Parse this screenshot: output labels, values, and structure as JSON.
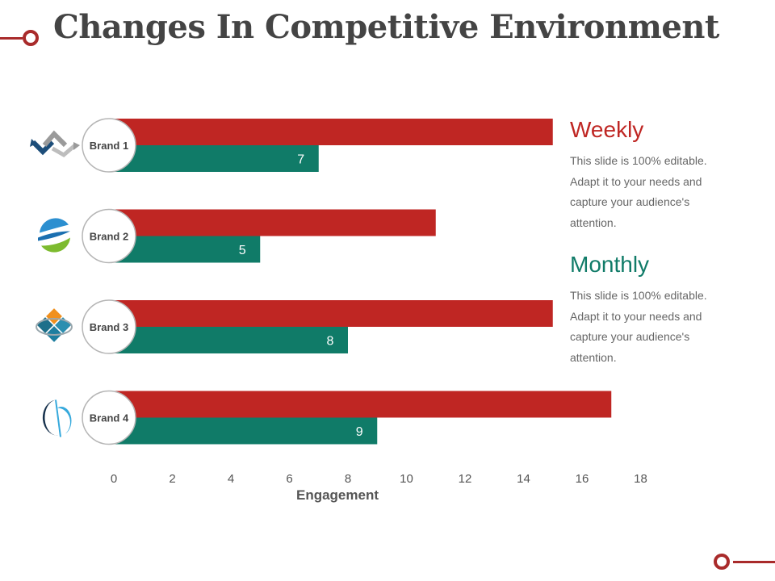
{
  "title": "Changes In Competitive Environment",
  "colors": {
    "weekly": "#bf2623",
    "monthly": "#107b68",
    "accent": "#a92b2b",
    "axis_text": "#555555",
    "title_text": "#444444"
  },
  "legend": [
    {
      "title": "Weekly",
      "lines": [
        "This slide is 100% editable.",
        "Adapt it to your needs and",
        "capture your audience's",
        "attention."
      ]
    },
    {
      "title": "Monthly",
      "lines": [
        "This slide is 100% editable.",
        "Adapt it to your needs and",
        "capture your audience's",
        "attention."
      ]
    }
  ],
  "chart_data": {
    "type": "bar",
    "orientation": "horizontal",
    "title": "",
    "xlabel": "Engagement",
    "ylabel": "",
    "xlim": [
      0,
      18
    ],
    "xticks": [
      0,
      2,
      4,
      6,
      8,
      10,
      12,
      14,
      16,
      18
    ],
    "categories": [
      "Brand 1",
      "Brand 2",
      "Brand 3",
      "Brand 4"
    ],
    "category_icons": [
      "chevron-diamond-logo-icon",
      "swirl-globe-logo-icon",
      "diamond-cluster-logo-icon",
      "crescent-leaf-logo-icon"
    ],
    "series": [
      {
        "name": "Weekly",
        "values": [
          15,
          11,
          15,
          17
        ],
        "show_labels": false
      },
      {
        "name": "Monthly",
        "values": [
          7,
          5,
          8,
          9
        ],
        "show_labels": true
      }
    ],
    "grid": false,
    "legend": "right"
  }
}
